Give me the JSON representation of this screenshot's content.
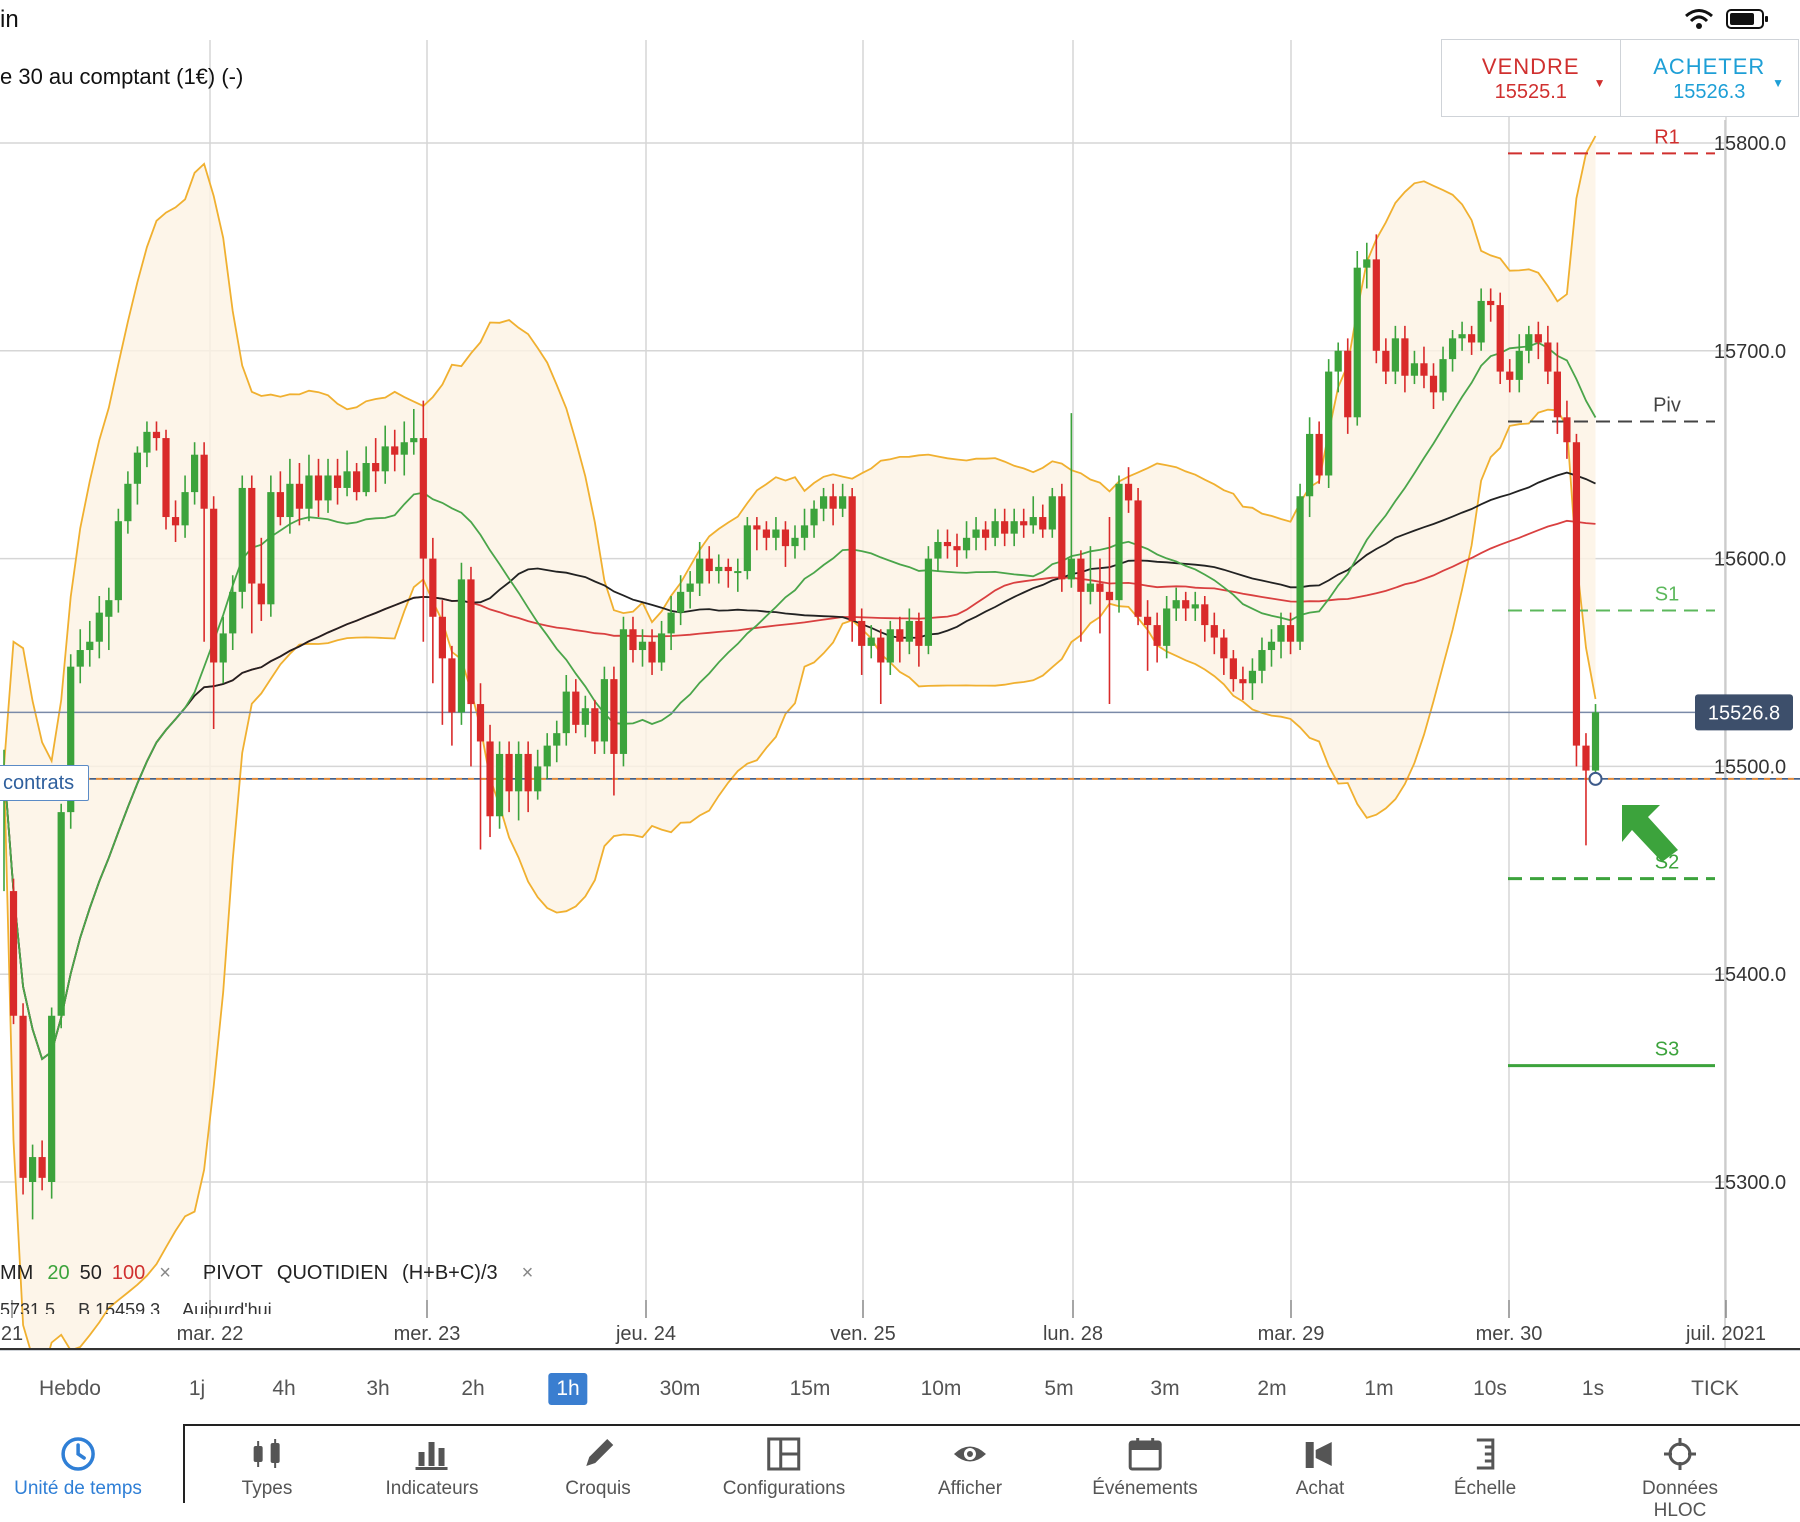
{
  "status_bar": {
    "app_label": "in",
    "icons": [
      "wifi-icon",
      "battery-icon"
    ]
  },
  "instrument": {
    "title": "e 30 au comptant (1€) (-)"
  },
  "trade": {
    "sell_label": "VENDRE",
    "sell_price": "15525.1",
    "buy_label": "ACHETER",
    "buy_price": "15526.3",
    "caret": "▼"
  },
  "position": {
    "label": "contrats"
  },
  "legend": {
    "mm_label": "MM",
    "mm_periods": [
      "20",
      "50",
      "100"
    ],
    "pivot_label": "PIVOT",
    "pivot_type": "QUOTIDIEN",
    "pivot_formula": "(H+B+C)/3",
    "remove_symbol": "×",
    "partial_values": [
      "5731.5",
      "B 15459.3",
      "Aujourd'hui"
    ]
  },
  "timeframes": [
    "Hebdo",
    "1j",
    "4h",
    "3h",
    "2h",
    "1h",
    "30m",
    "15m",
    "10m",
    "5m",
    "3m",
    "2m",
    "1m",
    "10s",
    "1s",
    "TICK"
  ],
  "active_timeframe": "1h",
  "toolbar": [
    {
      "label": "Unité de temps",
      "icon": "clock-icon"
    },
    {
      "label": "Types",
      "icon": "candles-icon"
    },
    {
      "label": "Indicateurs",
      "icon": "bar-chart-icon"
    },
    {
      "label": "Croquis",
      "icon": "pencil-icon"
    },
    {
      "label": "Configurations",
      "icon": "layout-icon"
    },
    {
      "label": "Afficher",
      "icon": "eye-icon"
    },
    {
      "label": "Événements",
      "icon": "calendar-icon"
    },
    {
      "label": "Achat",
      "icon": "speaker-icon"
    },
    {
      "label": "Échelle",
      "icon": "scale-icon"
    },
    {
      "label": "Données HLOC",
      "icon": "crosshair-icon"
    }
  ],
  "colors": {
    "up": "#3ca33c",
    "down": "#d92a2a",
    "bollinger": "#f0b030",
    "accent": "#2f7fd6"
  },
  "chart_data": {
    "type": "candlestick",
    "y_ticks": [
      "15800.0",
      "15700.0",
      "15600.0",
      "15500.0",
      "15400.0",
      "15300.0"
    ],
    "ylim": [
      15240,
      15840
    ],
    "x_ticks": [
      "21",
      "mar. 22",
      "mer. 23",
      "jeu. 24",
      "ven. 25",
      "lun. 28",
      "mar. 29",
      "mer. 30",
      "juil. 2021"
    ],
    "current_price_label": "15526.8",
    "pivot_levels": [
      {
        "name": "R1",
        "value": 15795,
        "style": "dashed",
        "color": "#d0302f"
      },
      {
        "name": "Piv",
        "value": 15666,
        "style": "dashed",
        "color": "#444444"
      },
      {
        "name": "S1",
        "value": 15575,
        "style": "dashed",
        "color": "#5cb85c"
      },
      {
        "name": "S2",
        "value": 15446,
        "style": "dashed",
        "color": "#3ca33c"
      },
      {
        "name": "S3",
        "value": 15356,
        "style": "solid",
        "color": "#3ca33c"
      }
    ],
    "position_level": 15494,
    "candles": [
      [
        15498,
        15500,
        15440,
        15508
      ],
      [
        15440,
        15380,
        15376,
        15446
      ],
      [
        15380,
        15302,
        15294,
        15386
      ],
      [
        15300,
        15312,
        15282,
        15318
      ],
      [
        15312,
        15302,
        15296,
        15320
      ],
      [
        15300,
        15380,
        15292,
        15384
      ],
      [
        15380,
        15478,
        15374,
        15482
      ],
      [
        15478,
        15548,
        15470,
        15554
      ],
      [
        15548,
        15556,
        15540,
        15566
      ],
      [
        15556,
        15560,
        15548,
        15570
      ],
      [
        15560,
        15574,
        15552,
        15582
      ],
      [
        15572,
        15580,
        15556,
        15586
      ],
      [
        15580,
        15618,
        15574,
        15624
      ],
      [
        15618,
        15636,
        15612,
        15642
      ],
      [
        15636,
        15651,
        15626,
        15654
      ],
      [
        15651,
        15661,
        15644,
        15666
      ],
      [
        15661,
        15658,
        15652,
        15666
      ],
      [
        15658,
        15620,
        15614,
        15662
      ],
      [
        15620,
        15616,
        15608,
        15628
      ],
      [
        15616,
        15632,
        15610,
        15640
      ],
      [
        15632,
        15650,
        15626,
        15656
      ],
      [
        15650,
        15624,
        15560,
        15656
      ],
      [
        15624,
        15550,
        15518,
        15630
      ],
      [
        15550,
        15564,
        15540,
        15572
      ],
      [
        15564,
        15584,
        15556,
        15592
      ],
      [
        15584,
        15634,
        15576,
        15640
      ],
      [
        15634,
        15588,
        15564,
        15640
      ],
      [
        15588,
        15578,
        15570,
        15610
      ],
      [
        15578,
        15632,
        15572,
        15640
      ],
      [
        15632,
        15620,
        15616,
        15642
      ],
      [
        15620,
        15636,
        15612,
        15648
      ],
      [
        15636,
        15624,
        15616,
        15646
      ],
      [
        15624,
        15640,
        15618,
        15650
      ],
      [
        15640,
        15628,
        15620,
        15648
      ],
      [
        15628,
        15640,
        15622,
        15648
      ],
      [
        15640,
        15634,
        15626,
        15648
      ],
      [
        15634,
        15642,
        15630,
        15652
      ],
      [
        15642,
        15632,
        15628,
        15646
      ],
      [
        15632,
        15646,
        15630,
        15654
      ],
      [
        15646,
        15642,
        15632,
        15658
      ],
      [
        15642,
        15654,
        15636,
        15664
      ],
      [
        15654,
        15650,
        15642,
        15662
      ],
      [
        15650,
        15656,
        15640,
        15666
      ],
      [
        15656,
        15658,
        15650,
        15672
      ],
      [
        15658,
        15600,
        15560,
        15676
      ],
      [
        15600,
        15572,
        15540,
        15610
      ],
      [
        15572,
        15552,
        15520,
        15580
      ],
      [
        15552,
        15526,
        15510,
        15558
      ],
      [
        15526,
        15590,
        15520,
        15598
      ],
      [
        15590,
        15530,
        15500,
        15596
      ],
      [
        15530,
        15512,
        15460,
        15540
      ],
      [
        15512,
        15476,
        15466,
        15520
      ],
      [
        15476,
        15506,
        15470,
        15512
      ],
      [
        15506,
        15488,
        15478,
        15512
      ],
      [
        15488,
        15506,
        15474,
        15512
      ],
      [
        15506,
        15488,
        15478,
        15512
      ],
      [
        15488,
        15500,
        15484,
        15508
      ],
      [
        15500,
        15510,
        15494,
        15516
      ],
      [
        15510,
        15516,
        15502,
        15522
      ],
      [
        15516,
        15536,
        15510,
        15544
      ],
      [
        15536,
        15520,
        15516,
        15542
      ],
      [
        15520,
        15528,
        15514,
        15534
      ],
      [
        15528,
        15512,
        15506,
        15532
      ],
      [
        15512,
        15542,
        15506,
        15548
      ],
      [
        15542,
        15506,
        15486,
        15548
      ],
      [
        15506,
        15566,
        15500,
        15572
      ],
      [
        15566,
        15556,
        15550,
        15572
      ],
      [
        15556,
        15560,
        15548,
        15566
      ],
      [
        15560,
        15550,
        15544,
        15566
      ],
      [
        15550,
        15564,
        15546,
        15570
      ],
      [
        15564,
        15574,
        15556,
        15582
      ],
      [
        15574,
        15584,
        15568,
        15592
      ],
      [
        15584,
        15588,
        15576,
        15594
      ],
      [
        15588,
        15600,
        15582,
        15608
      ],
      [
        15600,
        15594,
        15588,
        15606
      ],
      [
        15594,
        15596,
        15588,
        15602
      ],
      [
        15596,
        15594,
        15586,
        15600
      ],
      [
        15594,
        15594,
        15584,
        15600
      ],
      [
        15594,
        15616,
        15590,
        15620
      ],
      [
        15616,
        15614,
        15604,
        15620
      ],
      [
        15614,
        15610,
        15604,
        15618
      ],
      [
        15610,
        15614,
        15604,
        15620
      ],
      [
        15614,
        15606,
        15596,
        15618
      ],
      [
        15606,
        15610,
        15600,
        15616
      ],
      [
        15610,
        15616,
        15604,
        15624
      ],
      [
        15616,
        15624,
        15610,
        15628
      ],
      [
        15624,
        15630,
        15618,
        15634
      ],
      [
        15630,
        15624,
        15616,
        15636
      ],
      [
        15624,
        15630,
        15620,
        15636
      ],
      [
        15630,
        15570,
        15560,
        15634
      ],
      [
        15570,
        15558,
        15544,
        15576
      ],
      [
        15558,
        15562,
        15552,
        15568
      ],
      [
        15562,
        15550,
        15530,
        15566
      ],
      [
        15550,
        15566,
        15544,
        15570
      ],
      [
        15566,
        15560,
        15550,
        15572
      ],
      [
        15560,
        15570,
        15554,
        15576
      ],
      [
        15570,
        15558,
        15548,
        15574
      ],
      [
        15558,
        15600,
        15554,
        15606
      ],
      [
        15600,
        15608,
        15594,
        15614
      ],
      [
        15608,
        15606,
        15600,
        15614
      ],
      [
        15606,
        15604,
        15596,
        15612
      ],
      [
        15604,
        15610,
        15600,
        15618
      ],
      [
        15610,
        15614,
        15604,
        15620
      ],
      [
        15614,
        15610,
        15604,
        15618
      ],
      [
        15610,
        15618,
        15606,
        15624
      ],
      [
        15618,
        15612,
        15606,
        15624
      ],
      [
        15612,
        15618,
        15606,
        15624
      ],
      [
        15618,
        15616,
        15610,
        15624
      ],
      [
        15616,
        15620,
        15612,
        15630
      ],
      [
        15620,
        15614,
        15610,
        15626
      ],
      [
        15614,
        15630,
        15610,
        15634
      ],
      [
        15630,
        15590,
        15584,
        15636
      ],
      [
        15590,
        15600,
        15586,
        15670
      ],
      [
        15600,
        15584,
        15560,
        15604
      ],
      [
        15584,
        15588,
        15578,
        15606
      ],
      [
        15588,
        15584,
        15564,
        15600
      ],
      [
        15584,
        15580,
        15530,
        15620
      ],
      [
        15580,
        15636,
        15574,
        15640
      ],
      [
        15636,
        15628,
        15622,
        15644
      ],
      [
        15628,
        15572,
        15568,
        15634
      ],
      [
        15572,
        15568,
        15546,
        15580
      ],
      [
        15568,
        15558,
        15550,
        15574
      ],
      [
        15558,
        15576,
        15552,
        15582
      ],
      [
        15576,
        15580,
        15570,
        15586
      ],
      [
        15580,
        15576,
        15570,
        15584
      ],
      [
        15576,
        15578,
        15570,
        15584
      ],
      [
        15578,
        15568,
        15560,
        15582
      ],
      [
        15568,
        15562,
        15554,
        15574
      ],
      [
        15562,
        15552,
        15544,
        15566
      ],
      [
        15552,
        15542,
        15536,
        15556
      ],
      [
        15542,
        15540,
        15532,
        15548
      ],
      [
        15540,
        15546,
        15532,
        15552
      ],
      [
        15546,
        15556,
        15540,
        15562
      ],
      [
        15556,
        15560,
        15548,
        15566
      ],
      [
        15560,
        15568,
        15552,
        15574
      ],
      [
        15568,
        15560,
        15554,
        15574
      ],
      [
        15560,
        15630,
        15556,
        15636
      ],
      [
        15630,
        15660,
        15620,
        15668
      ],
      [
        15660,
        15640,
        15636,
        15666
      ],
      [
        15640,
        15690,
        15634,
        15696
      ],
      [
        15690,
        15700,
        15680,
        15704
      ],
      [
        15700,
        15668,
        15660,
        15706
      ],
      [
        15668,
        15740,
        15664,
        15748
      ],
      [
        15740,
        15744,
        15730,
        15752
      ],
      [
        15744,
        15700,
        15694,
        15756
      ],
      [
        15700,
        15690,
        15684,
        15706
      ],
      [
        15690,
        15706,
        15684,
        15712
      ],
      [
        15706,
        15688,
        15680,
        15712
      ],
      [
        15688,
        15694,
        15684,
        15700
      ],
      [
        15694,
        15688,
        15682,
        15702
      ],
      [
        15688,
        15680,
        15672,
        15694
      ],
      [
        15680,
        15696,
        15676,
        15702
      ],
      [
        15696,
        15706,
        15690,
        15710
      ],
      [
        15706,
        15708,
        15700,
        15714
      ],
      [
        15708,
        15704,
        15698,
        15712
      ],
      [
        15704,
        15724,
        15700,
        15730
      ],
      [
        15724,
        15722,
        15714,
        15730
      ],
      [
        15722,
        15690,
        15684,
        15728
      ],
      [
        15690,
        15686,
        15680,
        15696
      ],
      [
        15686,
        15700,
        15680,
        15708
      ],
      [
        15700,
        15708,
        15694,
        15712
      ],
      [
        15708,
        15704,
        15696,
        15714
      ],
      [
        15704,
        15690,
        15684,
        15712
      ],
      [
        15690,
        15668,
        15660,
        15704
      ],
      [
        15668,
        15656,
        15648,
        15676
      ],
      [
        15656,
        15510,
        15500,
        15660
      ],
      [
        15510,
        15498,
        15462,
        15516
      ],
      [
        15498,
        15526,
        15492,
        15530
      ]
    ]
  }
}
